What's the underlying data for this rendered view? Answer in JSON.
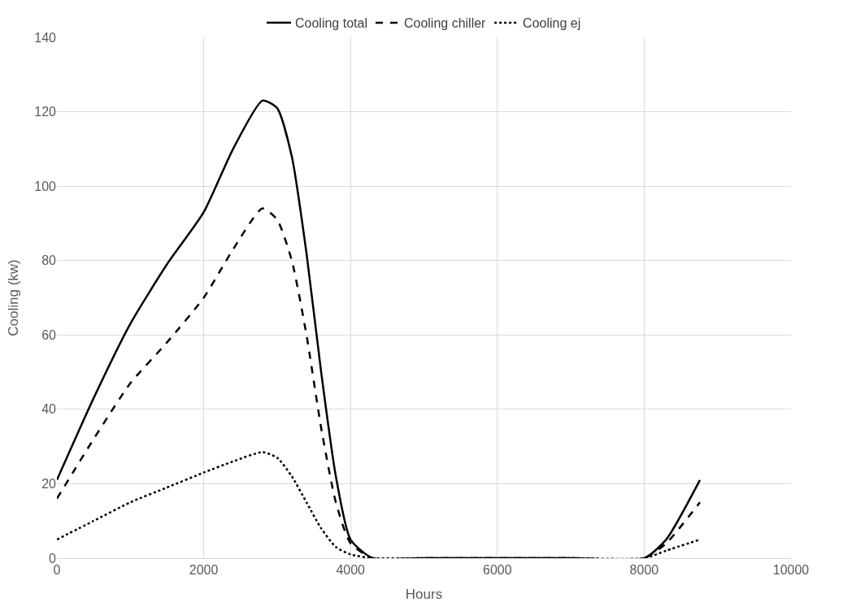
{
  "chart_data": {
    "type": "line",
    "xlabel": "Hours",
    "ylabel": "Cooling (kw)",
    "x": [
      0,
      500,
      1000,
      1500,
      2000,
      2400,
      2800,
      3000,
      3200,
      3400,
      3600,
      3800,
      4000,
      4300,
      5000,
      6000,
      7000,
      8000,
      8300,
      8760
    ],
    "series": [
      {
        "name": "Cooling total",
        "color": "#000000",
        "line_style": "solid",
        "values": [
          21,
          43,
          63,
          79,
          93,
          110,
          123,
          121,
          108,
          82,
          50,
          22,
          5,
          0,
          0,
          0,
          0,
          0,
          5,
          21
        ]
      },
      {
        "name": "Cooling chiller",
        "color": "#000000",
        "line_style": "dashed",
        "values": [
          16,
          32,
          47,
          58,
          70,
          83,
          94,
          91,
          80,
          60,
          35,
          15,
          4,
          0,
          0,
          0,
          0,
          0,
          4,
          15
        ]
      },
      {
        "name": "Cooling ej",
        "color": "#000000",
        "line_style": "dotted",
        "values": [
          5,
          10,
          15,
          19,
          23,
          26,
          28.5,
          27,
          22,
          15,
          8,
          3,
          1,
          0,
          0,
          0,
          0,
          0,
          2,
          5
        ]
      }
    ],
    "xlim": [
      0,
      10000
    ],
    "xticks": [
      0,
      2000,
      4000,
      6000,
      8000,
      10000
    ],
    "ylim": [
      0,
      140
    ],
    "yticks": [
      0,
      20,
      40,
      60,
      80,
      100,
      120,
      140
    ],
    "grid": true,
    "legend": "top",
    "marker": "none"
  }
}
